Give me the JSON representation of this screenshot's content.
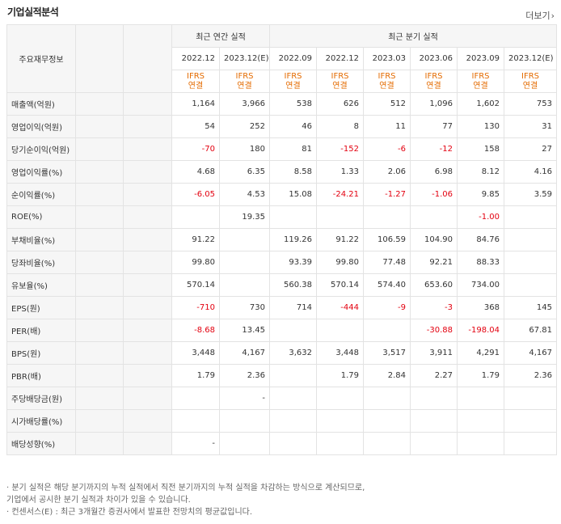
{
  "section_title": "기업실적분석",
  "more_label": "더보기",
  "header": {
    "annual_label": "최근 연간 실적",
    "quarter_label": "최근 분기 실적",
    "corner_label": "주요재무정보"
  },
  "periods": [
    {
      "date": "2022.12",
      "standard": "IFRS",
      "type": "연결"
    },
    {
      "date": "2023.12(E)",
      "standard": "IFRS",
      "type": "연결"
    },
    {
      "date": "2022.09",
      "standard": "IFRS",
      "type": "연결"
    },
    {
      "date": "2022.12",
      "standard": "IFRS",
      "type": "연결"
    },
    {
      "date": "2023.03",
      "standard": "IFRS",
      "type": "연결"
    },
    {
      "date": "2023.06",
      "standard": "IFRS",
      "type": "연결"
    },
    {
      "date": "2023.09",
      "standard": "IFRS",
      "type": "연결"
    },
    {
      "date": "2023.12(E)",
      "standard": "IFRS",
      "type": "연결"
    }
  ],
  "rows": [
    {
      "label": "매출액(억원)",
      "values": [
        "1,164",
        "3,966",
        "538",
        "626",
        "512",
        "1,096",
        "1,602",
        "753"
      ]
    },
    {
      "label": "영업이익(억원)",
      "values": [
        "54",
        "252",
        "46",
        "8",
        "11",
        "77",
        "130",
        "31"
      ]
    },
    {
      "label": "당기순이익(억원)",
      "values": [
        "-70",
        "180",
        "81",
        "-152",
        "-6",
        "-12",
        "158",
        "27"
      ]
    },
    {
      "label": "영업이익률(%)",
      "values": [
        "4.68",
        "6.35",
        "8.58",
        "1.33",
        "2.06",
        "6.98",
        "8.12",
        "4.16"
      ]
    },
    {
      "label": "순이익률(%)",
      "values": [
        "-6.05",
        "4.53",
        "15.08",
        "-24.21",
        "-1.27",
        "-1.06",
        "9.85",
        "3.59"
      ]
    },
    {
      "label": "ROE(%)",
      "values": [
        "",
        "19.35",
        "",
        "",
        "",
        "",
        "-1.00",
        ""
      ]
    },
    {
      "label": "부채비율(%)",
      "values": [
        "91.22",
        "",
        "119.26",
        "91.22",
        "106.59",
        "104.90",
        "84.76",
        ""
      ]
    },
    {
      "label": "당좌비율(%)",
      "values": [
        "99.80",
        "",
        "93.39",
        "99.80",
        "77.48",
        "92.21",
        "88.33",
        ""
      ]
    },
    {
      "label": "유보율(%)",
      "values": [
        "570.14",
        "",
        "560.38",
        "570.14",
        "574.40",
        "653.60",
        "734.00",
        ""
      ]
    },
    {
      "label": "EPS(원)",
      "values": [
        "-710",
        "730",
        "714",
        "-444",
        "-9",
        "-3",
        "368",
        "145"
      ]
    },
    {
      "label": "PER(배)",
      "values": [
        "-8.68",
        "13.45",
        "",
        "",
        "",
        "-30.88",
        "-198.04",
        "67.81"
      ]
    },
    {
      "label": "BPS(원)",
      "values": [
        "3,448",
        "4,167",
        "3,632",
        "3,448",
        "3,517",
        "3,911",
        "4,291",
        "4,167"
      ]
    },
    {
      "label": "PBR(배)",
      "values": [
        "1.79",
        "2.36",
        "",
        "1.79",
        "2.84",
        "2.27",
        "1.79",
        "2.36"
      ]
    },
    {
      "label": "주당배당금(원)",
      "values": [
        "",
        "-",
        "",
        "",
        "",
        "",
        "",
        ""
      ]
    },
    {
      "label": "시가배당률(%)",
      "values": [
        "",
        "",
        "",
        "",
        "",
        "",
        "",
        ""
      ]
    },
    {
      "label": "배당성향(%)",
      "values": [
        "-",
        "",
        "",
        "",
        "",
        "",
        "",
        ""
      ]
    }
  ],
  "notes": [
    "· 분기 실적은 해당 분기까지의 누적 실적에서 직전 분기까지의 누적 실적을 차감하는 방식으로 계산되므로,",
    "  기업에서 공시한 분기 실적과 차이가 있을 수 있습니다.",
    "· 컨센서스(E) : 최근 3개월간 증권사에서 발표한 전망치의 평균값입니다."
  ],
  "colors": {
    "negative": "#e3000f",
    "ifrs": "#e46b00",
    "header_bg": "#f6f6f6",
    "border": "#e3e3e3"
  }
}
